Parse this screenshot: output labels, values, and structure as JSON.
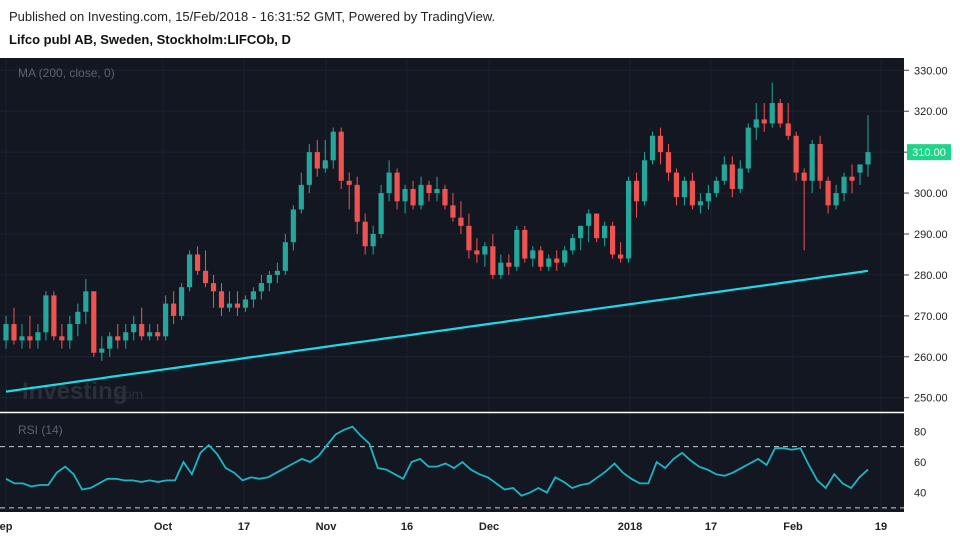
{
  "header": {
    "published": "Published on Investing.com, 15/Feb/2018 - 16:31:52 GMT, Powered by TradingView.",
    "symbol": "Lifco publ AB, Sweden, Stockholm:LIFCOb, D"
  },
  "watermark": {
    "brand": "Investing",
    "suffix": ".com"
  },
  "colors": {
    "background": "#131722",
    "up": "#26a69a",
    "upBright": "#1fd38a",
    "down": "#ef5350",
    "ma": "#1fd8e8",
    "rsi": "#1fb4c4",
    "axisText": "#222222"
  },
  "chart_data": [
    {
      "type": "candlestick",
      "title": "MA (200, close, 0)",
      "ylim": [
        247,
        333
      ],
      "yticks": [
        250,
        260,
        270,
        280,
        290,
        300,
        310,
        320,
        330
      ],
      "ytick_labels": [
        "250.00",
        "260.00",
        "270.00",
        "280.00",
        "290.00",
        "300.00",
        "310.00",
        "320.00",
        "330.00"
      ],
      "last_price": 310,
      "last_price_label": "310.00",
      "candles": [
        {
          "o": 264,
          "h": 270,
          "l": 262,
          "c": 268
        },
        {
          "o": 268,
          "h": 272,
          "l": 263,
          "c": 264
        },
        {
          "o": 264,
          "h": 268,
          "l": 262,
          "c": 265
        },
        {
          "o": 265,
          "h": 270,
          "l": 262,
          "c": 264
        },
        {
          "o": 264,
          "h": 268,
          "l": 262,
          "c": 266
        },
        {
          "o": 266,
          "h": 276,
          "l": 264,
          "c": 275
        },
        {
          "o": 275,
          "h": 276,
          "l": 264,
          "c": 265
        },
        {
          "o": 265,
          "h": 268,
          "l": 262,
          "c": 264
        },
        {
          "o": 264,
          "h": 270,
          "l": 262,
          "c": 268
        },
        {
          "o": 268,
          "h": 273,
          "l": 265,
          "c": 271
        },
        {
          "o": 271,
          "h": 279,
          "l": 268,
          "c": 276
        },
        {
          "o": 276,
          "h": 276,
          "l": 260,
          "c": 261
        },
        {
          "o": 261,
          "h": 265,
          "l": 259,
          "c": 262
        },
        {
          "o": 262,
          "h": 266,
          "l": 260,
          "c": 265
        },
        {
          "o": 265,
          "h": 268,
          "l": 262,
          "c": 264
        },
        {
          "o": 264,
          "h": 268,
          "l": 262,
          "c": 266
        },
        {
          "o": 266,
          "h": 270,
          "l": 264,
          "c": 268
        },
        {
          "o": 268,
          "h": 272,
          "l": 264,
          "c": 265
        },
        {
          "o": 265,
          "h": 268,
          "l": 264,
          "c": 266
        },
        {
          "o": 266,
          "h": 268,
          "l": 264,
          "c": 265
        },
        {
          "o": 265,
          "h": 275,
          "l": 264,
          "c": 273
        },
        {
          "o": 273,
          "h": 276,
          "l": 268,
          "c": 270
        },
        {
          "o": 270,
          "h": 278,
          "l": 269,
          "c": 277
        },
        {
          "o": 277,
          "h": 286,
          "l": 276,
          "c": 285
        },
        {
          "o": 285,
          "h": 287,
          "l": 280,
          "c": 281
        },
        {
          "o": 281,
          "h": 286,
          "l": 277,
          "c": 278
        },
        {
          "o": 278,
          "h": 280,
          "l": 272,
          "c": 276
        },
        {
          "o": 276,
          "h": 278,
          "l": 270,
          "c": 272
        },
        {
          "o": 272,
          "h": 276,
          "l": 271,
          "c": 273
        },
        {
          "o": 273,
          "h": 276,
          "l": 270,
          "c": 272
        },
        {
          "o": 272,
          "h": 275,
          "l": 271,
          "c": 274
        },
        {
          "o": 274,
          "h": 277,
          "l": 272,
          "c": 276
        },
        {
          "o": 276,
          "h": 280,
          "l": 274,
          "c": 278
        },
        {
          "o": 278,
          "h": 281,
          "l": 276,
          "c": 280
        },
        {
          "o": 280,
          "h": 283,
          "l": 278,
          "c": 281
        },
        {
          "o": 281,
          "h": 290,
          "l": 280,
          "c": 288
        },
        {
          "o": 288,
          "h": 297,
          "l": 286,
          "c": 296
        },
        {
          "o": 296,
          "h": 305,
          "l": 295,
          "c": 302
        },
        {
          "o": 302,
          "h": 312,
          "l": 300,
          "c": 310
        },
        {
          "o": 310,
          "h": 313,
          "l": 304,
          "c": 306
        },
        {
          "o": 306,
          "h": 313,
          "l": 305,
          "c": 308
        },
        {
          "o": 308,
          "h": 316,
          "l": 306,
          "c": 315
        },
        {
          "o": 315,
          "h": 316,
          "l": 301,
          "c": 303
        },
        {
          "o": 303,
          "h": 305,
          "l": 296,
          "c": 302
        },
        {
          "o": 302,
          "h": 304,
          "l": 290,
          "c": 293
        },
        {
          "o": 293,
          "h": 295,
          "l": 285,
          "c": 287
        },
        {
          "o": 287,
          "h": 292,
          "l": 285,
          "c": 290
        },
        {
          "o": 290,
          "h": 302,
          "l": 289,
          "c": 300
        },
        {
          "o": 300,
          "h": 308,
          "l": 298,
          "c": 305
        },
        {
          "o": 305,
          "h": 306,
          "l": 296,
          "c": 298
        },
        {
          "o": 298,
          "h": 302,
          "l": 295,
          "c": 301
        },
        {
          "o": 301,
          "h": 303,
          "l": 296,
          "c": 297
        },
        {
          "o": 297,
          "h": 304,
          "l": 296,
          "c": 302
        },
        {
          "o": 302,
          "h": 303,
          "l": 298,
          "c": 300
        },
        {
          "o": 300,
          "h": 304,
          "l": 298,
          "c": 301
        },
        {
          "o": 301,
          "h": 302,
          "l": 296,
          "c": 297
        },
        {
          "o": 297,
          "h": 300,
          "l": 293,
          "c": 294
        },
        {
          "o": 294,
          "h": 298,
          "l": 290,
          "c": 292
        },
        {
          "o": 292,
          "h": 295,
          "l": 284,
          "c": 286
        },
        {
          "o": 286,
          "h": 289,
          "l": 283,
          "c": 285
        },
        {
          "o": 285,
          "h": 288,
          "l": 282,
          "c": 287
        },
        {
          "o": 287,
          "h": 290,
          "l": 279,
          "c": 280
        },
        {
          "o": 280,
          "h": 285,
          "l": 279,
          "c": 283
        },
        {
          "o": 283,
          "h": 285,
          "l": 280,
          "c": 282
        },
        {
          "o": 282,
          "h": 292,
          "l": 281,
          "c": 291
        },
        {
          "o": 291,
          "h": 292,
          "l": 283,
          "c": 284
        },
        {
          "o": 284,
          "h": 287,
          "l": 282,
          "c": 286
        },
        {
          "o": 286,
          "h": 287,
          "l": 281,
          "c": 282
        },
        {
          "o": 282,
          "h": 285,
          "l": 281,
          "c": 284
        },
        {
          "o": 284,
          "h": 286,
          "l": 281,
          "c": 283
        },
        {
          "o": 283,
          "h": 287,
          "l": 282,
          "c": 286
        },
        {
          "o": 286,
          "h": 290,
          "l": 285,
          "c": 289
        },
        {
          "o": 289,
          "h": 292,
          "l": 286,
          "c": 292
        },
        {
          "o": 292,
          "h": 296,
          "l": 288,
          "c": 295
        },
        {
          "o": 295,
          "h": 295,
          "l": 288,
          "c": 289
        },
        {
          "o": 289,
          "h": 293,
          "l": 287,
          "c": 292
        },
        {
          "o": 292,
          "h": 293,
          "l": 284,
          "c": 285
        },
        {
          "o": 285,
          "h": 288,
          "l": 283,
          "c": 284
        },
        {
          "o": 284,
          "h": 304,
          "l": 283,
          "c": 303
        },
        {
          "o": 303,
          "h": 305,
          "l": 294,
          "c": 298
        },
        {
          "o": 298,
          "h": 310,
          "l": 297,
          "c": 308
        },
        {
          "o": 308,
          "h": 315,
          "l": 307,
          "c": 314
        },
        {
          "o": 314,
          "h": 316,
          "l": 307,
          "c": 310
        },
        {
          "o": 310,
          "h": 312,
          "l": 303,
          "c": 305
        },
        {
          "o": 305,
          "h": 306,
          "l": 297,
          "c": 299
        },
        {
          "o": 299,
          "h": 304,
          "l": 297,
          "c": 303
        },
        {
          "o": 303,
          "h": 305,
          "l": 296,
          "c": 297
        },
        {
          "o": 297,
          "h": 300,
          "l": 295,
          "c": 298
        },
        {
          "o": 298,
          "h": 302,
          "l": 296,
          "c": 300
        },
        {
          "o": 300,
          "h": 304,
          "l": 299,
          "c": 303
        },
        {
          "o": 303,
          "h": 309,
          "l": 302,
          "c": 307
        },
        {
          "o": 307,
          "h": 309,
          "l": 299,
          "c": 301
        },
        {
          "o": 301,
          "h": 308,
          "l": 300,
          "c": 306
        },
        {
          "o": 306,
          "h": 317,
          "l": 305,
          "c": 316
        },
        {
          "o": 316,
          "h": 322,
          "l": 313,
          "c": 318
        },
        {
          "o": 318,
          "h": 322,
          "l": 315,
          "c": 317
        },
        {
          "o": 317,
          "h": 327,
          "l": 316,
          "c": 322
        },
        {
          "o": 322,
          "h": 323,
          "l": 316,
          "c": 317
        },
        {
          "o": 317,
          "h": 322,
          "l": 313,
          "c": 314
        },
        {
          "o": 314,
          "h": 315,
          "l": 303,
          "c": 305
        },
        {
          "o": 305,
          "h": 306,
          "l": 286,
          "c": 303
        },
        {
          "o": 303,
          "h": 313,
          "l": 300,
          "c": 312
        },
        {
          "o": 312,
          "h": 314,
          "l": 301,
          "c": 303
        },
        {
          "o": 303,
          "h": 304,
          "l": 295,
          "c": 297
        },
        {
          "o": 297,
          "h": 302,
          "l": 296,
          "c": 300
        },
        {
          "o": 300,
          "h": 305,
          "l": 298,
          "c": 304
        },
        {
          "o": 304,
          "h": 307,
          "l": 300,
          "c": 303
        },
        {
          "o": 305,
          "h": 307,
          "l": 302,
          "c": 307
        },
        {
          "o": 307,
          "h": 319,
          "l": 304,
          "c": 310
        }
      ],
      "ma_label": "MA (200, close, 0)",
      "ma_start": 251.5,
      "ma_end": 281
    },
    {
      "type": "line",
      "title": "RSI (14)",
      "ylim": [
        28,
        90
      ],
      "yticks": [
        40,
        60,
        80
      ],
      "ytick_labels": [
        "40",
        "60",
        "80"
      ],
      "bands": [
        30,
        70
      ],
      "values": [
        49,
        46,
        46,
        44,
        45,
        45,
        53,
        57,
        52,
        42,
        43,
        46,
        49,
        49,
        48,
        48,
        47,
        48,
        47,
        48,
        48,
        60,
        52,
        66,
        71,
        65,
        56,
        53,
        48,
        50,
        49,
        50,
        53,
        56,
        59,
        62,
        60,
        64,
        71,
        78,
        81,
        83,
        77,
        72,
        56,
        55,
        52,
        49,
        60,
        62,
        57,
        57,
        59,
        56,
        60,
        55,
        52,
        50,
        46,
        42,
        43,
        38,
        40,
        43,
        40,
        50,
        47,
        43,
        45,
        46,
        50,
        54,
        59,
        53,
        49,
        46,
        46,
        60,
        56,
        62,
        66,
        61,
        57,
        55,
        52,
        51,
        53,
        56,
        59,
        62,
        58,
        69,
        69,
        68,
        69,
        58,
        48,
        43,
        52,
        46,
        43,
        50,
        55
      ],
      "x_tick_labels": [
        "ep",
        "Oct",
        "17",
        "Nov",
        "16",
        "Dec",
        "2018",
        "17",
        "Feb",
        "19"
      ]
    }
  ]
}
